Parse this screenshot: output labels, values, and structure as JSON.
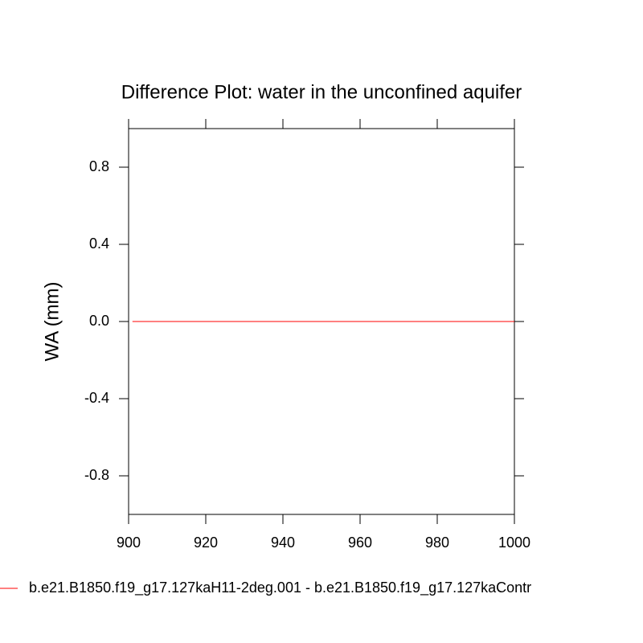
{
  "chart_data": {
    "type": "line",
    "title": "Difference Plot: water in the unconfined aquifer",
    "y_label": "WA  (mm)",
    "x": [
      901,
      1000
    ],
    "series": [
      {
        "name": "b.e21.B1850.f19_g17.127kaH11-2deg.001 - b.e21.B1850.f19_g17.127kaContr",
        "color": "#ff0000",
        "values": [
          0,
          0
        ]
      }
    ],
    "xlim": [
      900,
      1000
    ],
    "xticks": [
      900,
      920,
      940,
      960,
      980,
      1000
    ],
    "ylim": [
      -1,
      1
    ],
    "yticks": [
      -0.8,
      -0.4,
      {
        "value": 0,
        "label": "0.0"
      },
      0.4,
      0.8
    ],
    "grid": false,
    "legend": "bottom"
  }
}
